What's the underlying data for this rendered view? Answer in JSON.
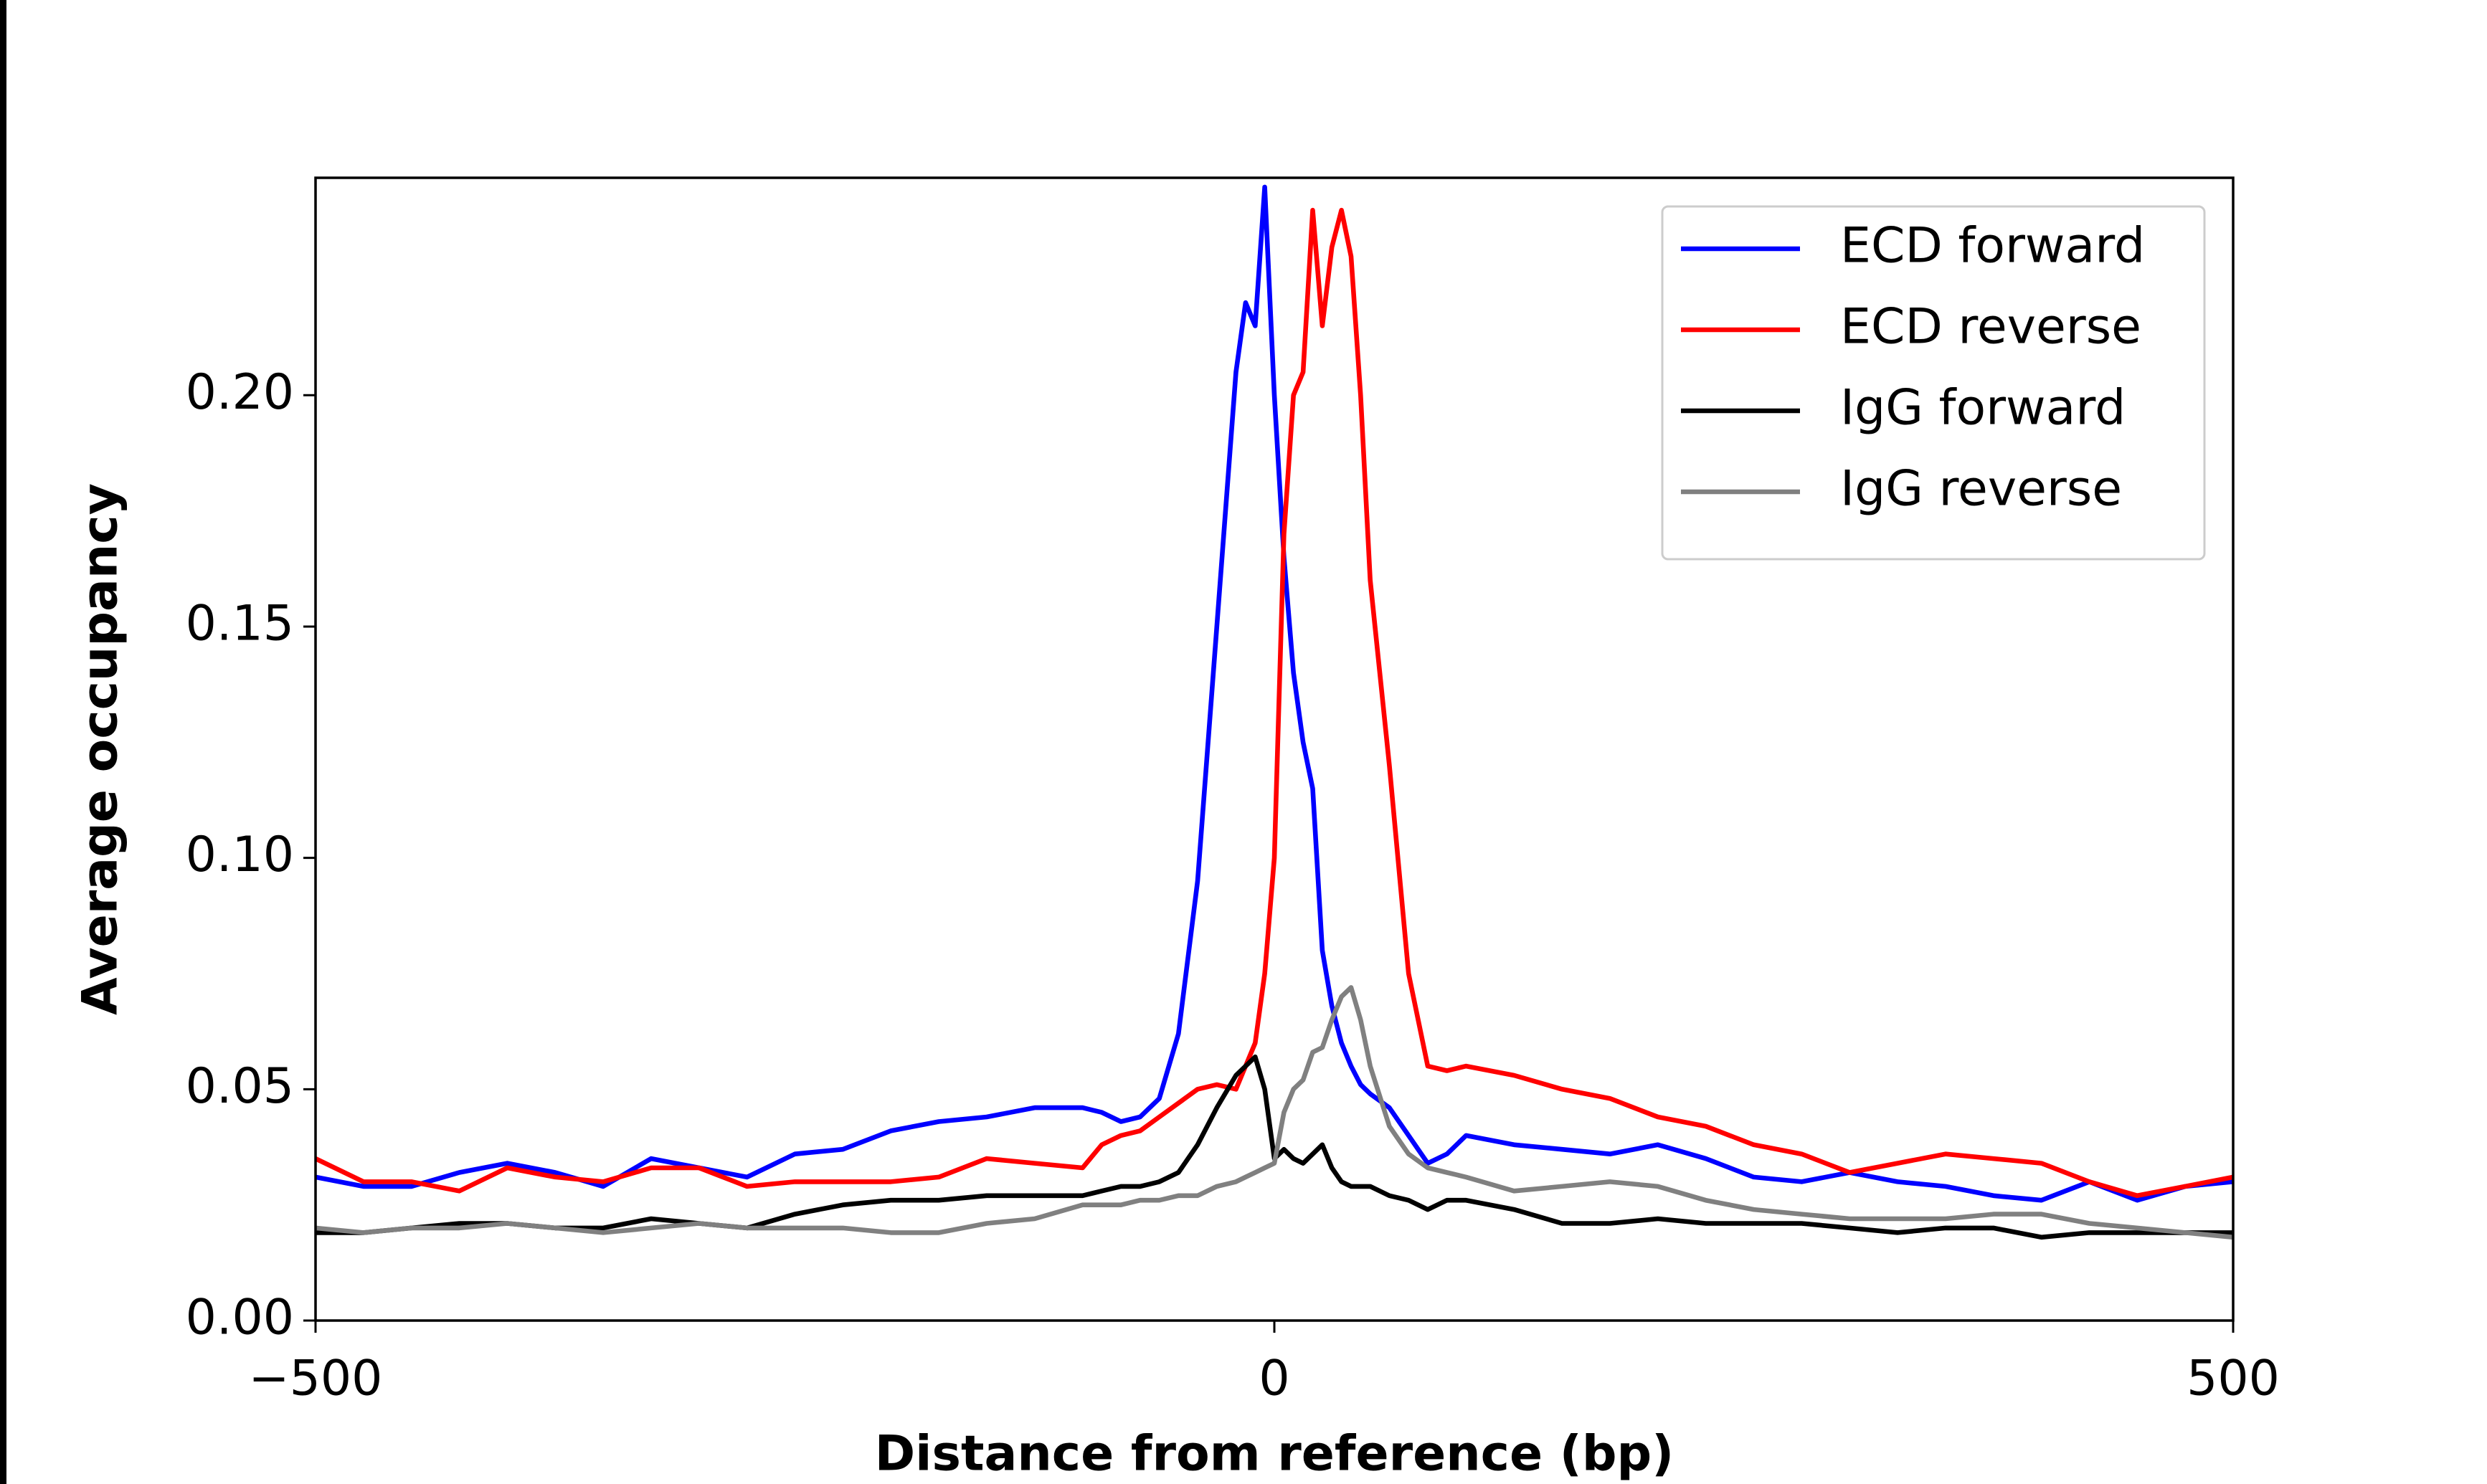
{
  "chart_data": {
    "type": "line",
    "xlabel": "Distance from reference (bp)",
    "ylabel": "Average occupancy",
    "x": [
      -500,
      -475,
      -450,
      -425,
      -400,
      -375,
      -350,
      -325,
      -300,
      -275,
      -250,
      -225,
      -200,
      -175,
      -150,
      -125,
      -100,
      -90,
      -80,
      -70,
      -60,
      -50,
      -40,
      -30,
      -20,
      -15,
      -10,
      -5,
      0,
      5,
      10,
      15,
      20,
      25,
      30,
      35,
      40,
      45,
      50,
      60,
      70,
      80,
      90,
      100,
      125,
      150,
      175,
      200,
      225,
      250,
      275,
      300,
      325,
      350,
      375,
      400,
      425,
      450,
      475,
      500
    ],
    "series": [
      {
        "name": "ECD forward",
        "color": "#0000ff",
        "values": [
          0.031,
          0.029,
          0.029,
          0.032,
          0.034,
          0.032,
          0.029,
          0.035,
          0.033,
          0.031,
          0.036,
          0.037,
          0.041,
          0.043,
          0.044,
          0.046,
          0.046,
          0.045,
          0.043,
          0.044,
          0.048,
          0.062,
          0.095,
          0.15,
          0.205,
          0.22,
          0.215,
          0.245,
          0.2,
          0.165,
          0.14,
          0.125,
          0.115,
          0.08,
          0.068,
          0.06,
          0.055,
          0.051,
          0.049,
          0.046,
          0.04,
          0.034,
          0.036,
          0.04,
          0.038,
          0.037,
          0.036,
          0.038,
          0.035,
          0.031,
          0.03,
          0.032,
          0.03,
          0.029,
          0.027,
          0.026,
          0.03,
          0.026,
          0.029,
          0.03
        ]
      },
      {
        "name": "ECD reverse",
        "color": "#ff0000",
        "values": [
          0.035,
          0.03,
          0.03,
          0.028,
          0.033,
          0.031,
          0.03,
          0.033,
          0.033,
          0.029,
          0.03,
          0.03,
          0.03,
          0.031,
          0.035,
          0.034,
          0.033,
          0.038,
          0.04,
          0.041,
          0.044,
          0.047,
          0.05,
          0.051,
          0.05,
          0.055,
          0.06,
          0.075,
          0.1,
          0.17,
          0.2,
          0.205,
          0.24,
          0.215,
          0.232,
          0.24,
          0.23,
          0.2,
          0.16,
          0.12,
          0.075,
          0.055,
          0.054,
          0.055,
          0.053,
          0.05,
          0.048,
          0.044,
          0.042,
          0.038,
          0.036,
          0.032,
          0.034,
          0.036,
          0.035,
          0.034,
          0.03,
          0.027,
          0.029,
          0.031
        ]
      },
      {
        "name": "IgG forward",
        "color": "#000000",
        "values": [
          0.019,
          0.019,
          0.02,
          0.021,
          0.021,
          0.02,
          0.02,
          0.022,
          0.021,
          0.02,
          0.023,
          0.025,
          0.026,
          0.026,
          0.027,
          0.027,
          0.027,
          0.028,
          0.029,
          0.029,
          0.03,
          0.032,
          0.038,
          0.046,
          0.053,
          0.055,
          0.057,
          0.05,
          0.035,
          0.037,
          0.035,
          0.034,
          0.036,
          0.038,
          0.033,
          0.03,
          0.029,
          0.029,
          0.029,
          0.027,
          0.026,
          0.024,
          0.026,
          0.026,
          0.024,
          0.021,
          0.021,
          0.022,
          0.021,
          0.021,
          0.021,
          0.02,
          0.019,
          0.02,
          0.02,
          0.018,
          0.019,
          0.019,
          0.019,
          0.019
        ]
      },
      {
        "name": "IgG reverse",
        "color": "#808080",
        "values": [
          0.02,
          0.019,
          0.02,
          0.02,
          0.021,
          0.02,
          0.019,
          0.02,
          0.021,
          0.02,
          0.02,
          0.02,
          0.019,
          0.019,
          0.021,
          0.022,
          0.025,
          0.025,
          0.025,
          0.026,
          0.026,
          0.027,
          0.027,
          0.029,
          0.03,
          0.031,
          0.032,
          0.033,
          0.034,
          0.045,
          0.05,
          0.052,
          0.058,
          0.059,
          0.065,
          0.07,
          0.072,
          0.065,
          0.055,
          0.042,
          0.036,
          0.033,
          0.032,
          0.031,
          0.028,
          0.029,
          0.03,
          0.029,
          0.026,
          0.024,
          0.023,
          0.022,
          0.022,
          0.022,
          0.023,
          0.023,
          0.021,
          0.02,
          0.019,
          0.018
        ]
      }
    ],
    "xlim": [
      -500,
      500
    ],
    "ylim": [
      0,
      0.247
    ],
    "xticks": [
      {
        "value": -500,
        "label": "−500"
      },
      0,
      500
    ],
    "yticks": [
      {
        "value": 0,
        "label": "0.00"
      },
      0.05,
      {
        "value": 0.1,
        "label": "0.10"
      },
      0.15,
      {
        "value": 0.2,
        "label": "0.20"
      }
    ],
    "legend": "upper right"
  }
}
